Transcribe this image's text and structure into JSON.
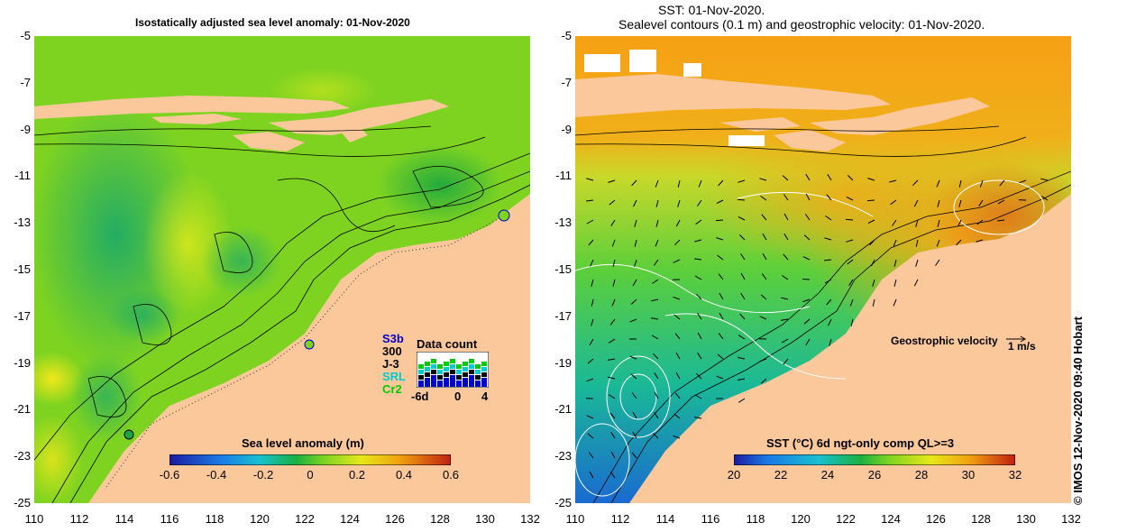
{
  "left_map": {
    "title": "Isostatically adjusted sea level anomaly: 01-Nov-2020",
    "colorbar": {
      "title": "Sea level anomaly (m)",
      "ticks": [
        "-0.6",
        "-0.4",
        "-0.2",
        "0",
        "0.2",
        "0.4",
        "0.6"
      ],
      "range": [
        -0.6,
        0.6
      ]
    },
    "data_count": {
      "title": "Data count",
      "satellites": [
        {
          "label": "S3b",
          "color": "#0000cc"
        },
        {
          "label": "300",
          "color": "#000000"
        },
        {
          "label": "J-3",
          "color": "#000000"
        },
        {
          "label": "SRL",
          "color": "#00cccc"
        },
        {
          "label": "Cr2",
          "color": "#00cc00"
        }
      ],
      "axis_ticks": [
        "-6d",
        "0",
        "4"
      ]
    }
  },
  "right_map": {
    "title_line1": "SST: 01-Nov-2020.",
    "title_line2": "Sealevel contours (0.1 m) and geostrophic velocity: 01-Nov-2020.",
    "colorbar": {
      "title": "SST (°C) 6d ngt-only comp QL>=3",
      "ticks": [
        "20",
        "22",
        "24",
        "26",
        "28",
        "30",
        "32"
      ],
      "range": [
        20,
        32
      ]
    },
    "velocity_legend": {
      "label": "Geostrophic velocity",
      "unit": "1 m/s"
    }
  },
  "axes": {
    "lat_ticks": [
      "-5",
      "-7",
      "-9",
      "-11",
      "-13",
      "-15",
      "-17",
      "-19",
      "-21",
      "-23",
      "-25"
    ],
    "lon_ticks": [
      "110",
      "112",
      "114",
      "116",
      "118",
      "120",
      "122",
      "124",
      "126",
      "128",
      "130",
      "132"
    ]
  },
  "colors": {
    "land": "#fbc89c",
    "sla_background": "#7ed321",
    "sst_background": "#f6a014"
  },
  "credit": "© IMOS 12-Nov-2020 09:40 Hobart"
}
